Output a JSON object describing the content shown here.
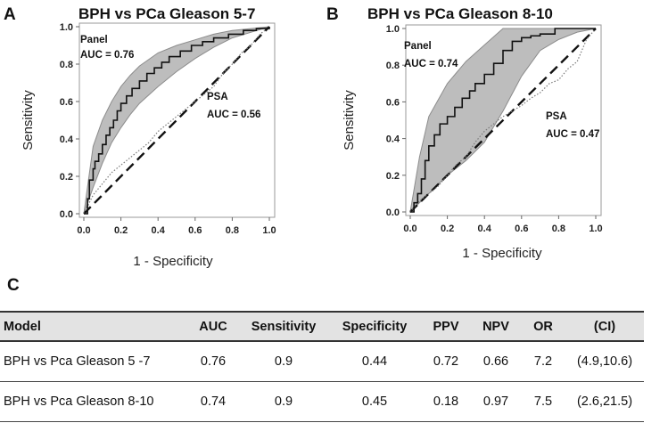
{
  "chart_data": [
    {
      "type": "line",
      "panel_letter": "A",
      "title": "BPH vs PCa Gleason 5-7",
      "xlabel": "1 - Specificity",
      "ylabel": "Sensitivity",
      "xlim": [
        0,
        1
      ],
      "ylim": [
        0,
        1
      ],
      "xticks": [
        "0.0",
        "0.2",
        "0.4",
        "0.6",
        "0.8",
        "1.0"
      ],
      "yticks": [
        "0.0",
        "0.2",
        "0.4",
        "0.6",
        "0.8",
        "1.0"
      ],
      "annotations": [
        {
          "name": "Panel",
          "auc_text": "AUC = 0.76"
        },
        {
          "name": "PSA",
          "auc_text": "AUC = 0.56"
        }
      ],
      "series": [
        {
          "name": "Panel",
          "style": "step",
          "x": [
            0,
            0.02,
            0.03,
            0.05,
            0.06,
            0.08,
            0.1,
            0.12,
            0.14,
            0.16,
            0.18,
            0.2,
            0.23,
            0.26,
            0.3,
            0.34,
            0.38,
            0.42,
            0.46,
            0.52,
            0.58,
            0.64,
            0.7,
            0.78,
            0.86,
            0.93,
            1.0
          ],
          "y": [
            0,
            0.08,
            0.18,
            0.24,
            0.28,
            0.32,
            0.37,
            0.42,
            0.46,
            0.5,
            0.55,
            0.59,
            0.63,
            0.67,
            0.71,
            0.75,
            0.78,
            0.81,
            0.84,
            0.87,
            0.9,
            0.92,
            0.94,
            0.96,
            0.98,
            0.99,
            1.0
          ]
        },
        {
          "name": "Panel 95% CI",
          "style": "band",
          "x": [
            0,
            0.05,
            0.1,
            0.15,
            0.2,
            0.25,
            0.3,
            0.4,
            0.5,
            0.6,
            0.7,
            0.8,
            0.9,
            1.0
          ],
          "lower": [
            0,
            0.14,
            0.27,
            0.38,
            0.46,
            0.53,
            0.59,
            0.68,
            0.76,
            0.83,
            0.89,
            0.94,
            0.97,
            1.0
          ],
          "upper": [
            0,
            0.36,
            0.5,
            0.6,
            0.68,
            0.74,
            0.79,
            0.86,
            0.9,
            0.93,
            0.96,
            0.98,
            0.99,
            1.0
          ]
        },
        {
          "name": "PSA",
          "style": "dotted",
          "x": [
            0,
            0.05,
            0.1,
            0.15,
            0.2,
            0.25,
            0.3,
            0.35,
            0.4,
            0.45,
            0.5,
            0.55,
            0.6,
            0.65,
            0.7,
            0.75,
            0.8,
            0.85,
            0.9,
            0.95,
            1.0
          ],
          "y": [
            0,
            0.1,
            0.16,
            0.22,
            0.26,
            0.3,
            0.34,
            0.38,
            0.44,
            0.48,
            0.52,
            0.56,
            0.6,
            0.64,
            0.68,
            0.75,
            0.8,
            0.86,
            0.9,
            0.96,
            1.0
          ]
        },
        {
          "name": "Reference",
          "style": "dashed",
          "x": [
            0,
            1
          ],
          "y": [
            0,
            1
          ]
        }
      ]
    },
    {
      "type": "line",
      "panel_letter": "B",
      "title": "BPH vs PCa Gleason 8-10",
      "xlabel": "1 - Specificity",
      "ylabel": "Sensitivity",
      "xlim": [
        0,
        1
      ],
      "ylim": [
        0,
        1
      ],
      "xticks": [
        "0.0",
        "0.2",
        "0.4",
        "0.6",
        "0.8",
        "1.0"
      ],
      "yticks": [
        "0.0",
        "0.2",
        "0.4",
        "0.6",
        "0.8",
        "1.0"
      ],
      "annotations": [
        {
          "name": "Panel",
          "auc_text": "AUC = 0.74"
        },
        {
          "name": "PSA",
          "auc_text": "AUC = 0.47"
        }
      ],
      "series": [
        {
          "name": "Panel",
          "style": "step",
          "x": [
            0,
            0.02,
            0.04,
            0.06,
            0.08,
            0.1,
            0.13,
            0.16,
            0.2,
            0.24,
            0.28,
            0.32,
            0.35,
            0.4,
            0.45,
            0.5,
            0.55,
            0.6,
            0.65,
            0.7,
            0.78,
            0.86,
            1.0
          ],
          "y": [
            0,
            0.05,
            0.1,
            0.18,
            0.28,
            0.36,
            0.42,
            0.48,
            0.52,
            0.57,
            0.62,
            0.66,
            0.7,
            0.75,
            0.81,
            0.88,
            0.93,
            0.95,
            0.96,
            0.97,
            1.0,
            1.0,
            1.0
          ]
        },
        {
          "name": "Panel 95% CI",
          "style": "band",
          "x": [
            0,
            0.05,
            0.1,
            0.2,
            0.3,
            0.4,
            0.5,
            0.6,
            0.7,
            0.8,
            0.9,
            1.0
          ],
          "lower": [
            0,
            0.05,
            0.1,
            0.2,
            0.28,
            0.38,
            0.55,
            0.74,
            0.88,
            0.94,
            0.98,
            1.0
          ],
          "upper": [
            0,
            0.3,
            0.52,
            0.7,
            0.82,
            0.91,
            1.0,
            1.0,
            1.0,
            1.0,
            1.0,
            1.0
          ]
        },
        {
          "name": "PSA",
          "style": "dotted",
          "x": [
            0,
            0.05,
            0.1,
            0.15,
            0.2,
            0.25,
            0.3,
            0.35,
            0.4,
            0.45,
            0.5,
            0.55,
            0.6,
            0.65,
            0.7,
            0.75,
            0.8,
            0.85,
            0.9,
            0.95,
            1.0
          ],
          "y": [
            0,
            0.06,
            0.1,
            0.14,
            0.2,
            0.26,
            0.3,
            0.38,
            0.44,
            0.48,
            0.52,
            0.55,
            0.58,
            0.62,
            0.65,
            0.7,
            0.72,
            0.78,
            0.82,
            0.94,
            1.0
          ]
        },
        {
          "name": "Reference",
          "style": "dashed",
          "x": [
            0,
            1
          ],
          "y": [
            0,
            1
          ]
        }
      ]
    }
  ],
  "table": {
    "letter": "C",
    "headers": [
      "Model",
      "AUC",
      "Sensitivity",
      "Specificity",
      "PPV",
      "NPV",
      "OR",
      "(CI)"
    ],
    "rows": [
      [
        "BPH vs Pca Gleason  5 -7",
        "0.76",
        "0.9",
        "0.44",
        "0.72",
        "0.66",
        "7.2",
        "(4.9,10.6)"
      ],
      [
        "BPH vs Pca Gleason  8-10",
        "0.74",
        "0.9",
        "0.45",
        "0.18",
        "0.97",
        "7.5",
        "(2.6,21.5)"
      ]
    ]
  },
  "colors": {
    "band_fill": "#bdbdbd",
    "band_edge": "#8c8c8c",
    "panel_line": "#111111",
    "psa_line": "#7a7a7a",
    "reference_line": "#111111",
    "frame": "#999999",
    "table_header_bg": "#e3e3e3"
  }
}
